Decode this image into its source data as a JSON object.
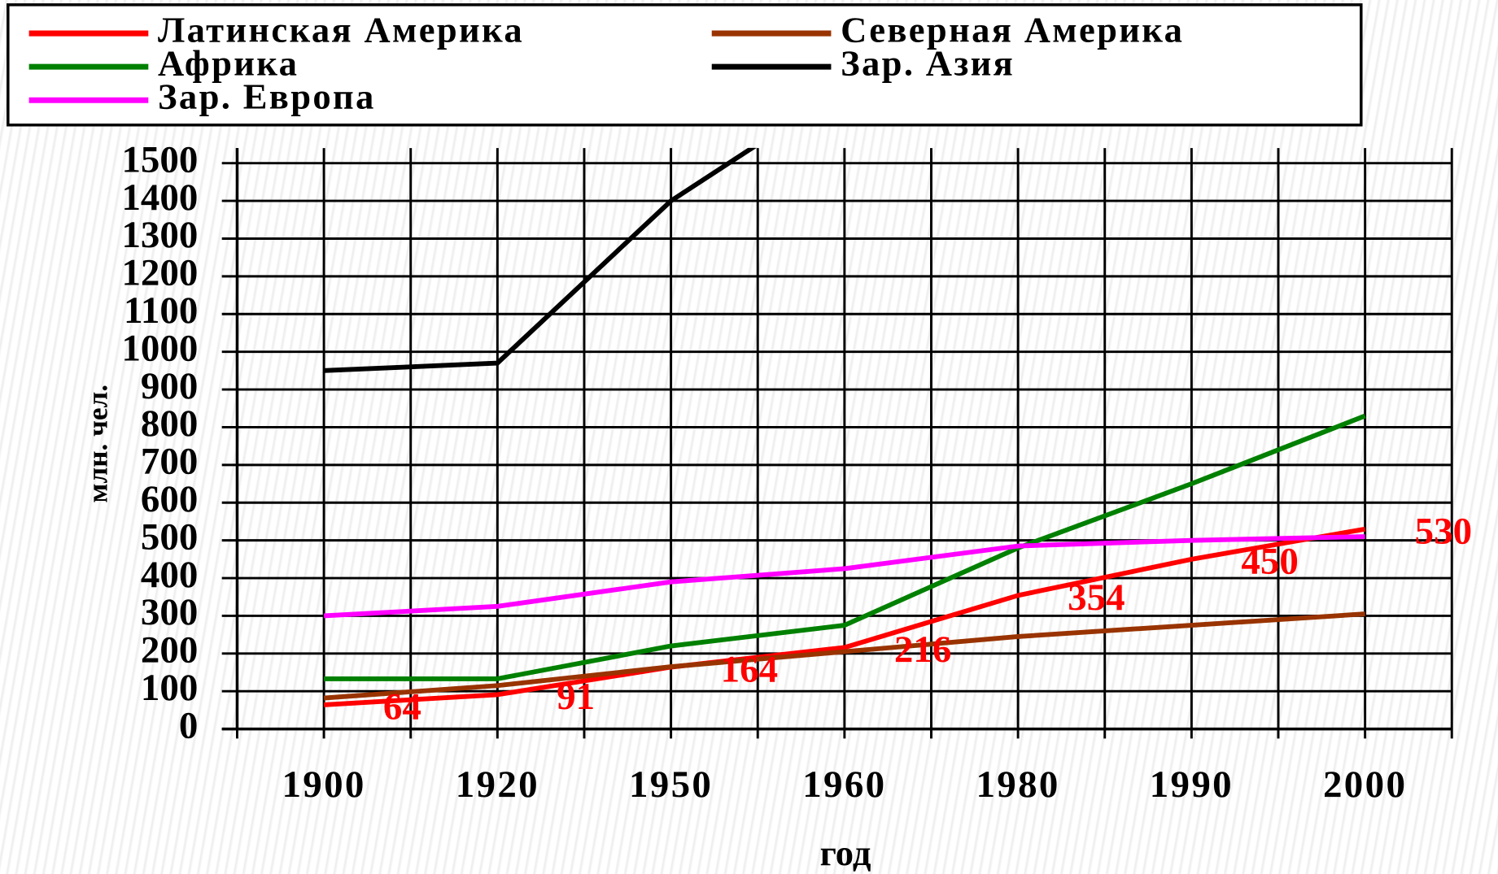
{
  "chart_data": {
    "type": "line",
    "x_label": "год",
    "y_label": "млн. чел.",
    "categories": [
      "1900",
      "1920",
      "1950",
      "1960",
      "1980",
      "1990",
      "2000"
    ],
    "series": [
      {
        "name": "Латинская Америка",
        "color": "#ff0000",
        "values": [
          64,
          91,
          164,
          216,
          354,
          450,
          530
        ]
      },
      {
        "name": "Северная Америка",
        "color": "#993300",
        "values": [
          82,
          115,
          165,
          205,
          245,
          275,
          305
        ]
      },
      {
        "name": "Африка",
        "color": "#008000",
        "values": [
          133,
          133,
          220,
          275,
          480,
          650,
          830
        ]
      },
      {
        "name": "Зар. Азия",
        "color": "#000000",
        "values": [
          950,
          970,
          1400,
          1700,
          null,
          null,
          null
        ]
      },
      {
        "name": "Зар. Европа",
        "color": "#ff00ff",
        "values": [
          300,
          325,
          390,
          425,
          485,
          500,
          510
        ]
      }
    ],
    "data_labels_series": 0,
    "ylim": [
      0,
      1540
    ],
    "yticks": [
      0,
      100,
      200,
      300,
      400,
      500,
      600,
      700,
      800,
      900,
      1000,
      1100,
      1200,
      1300,
      1400,
      1500
    ],
    "grid": true,
    "legend": "top"
  }
}
